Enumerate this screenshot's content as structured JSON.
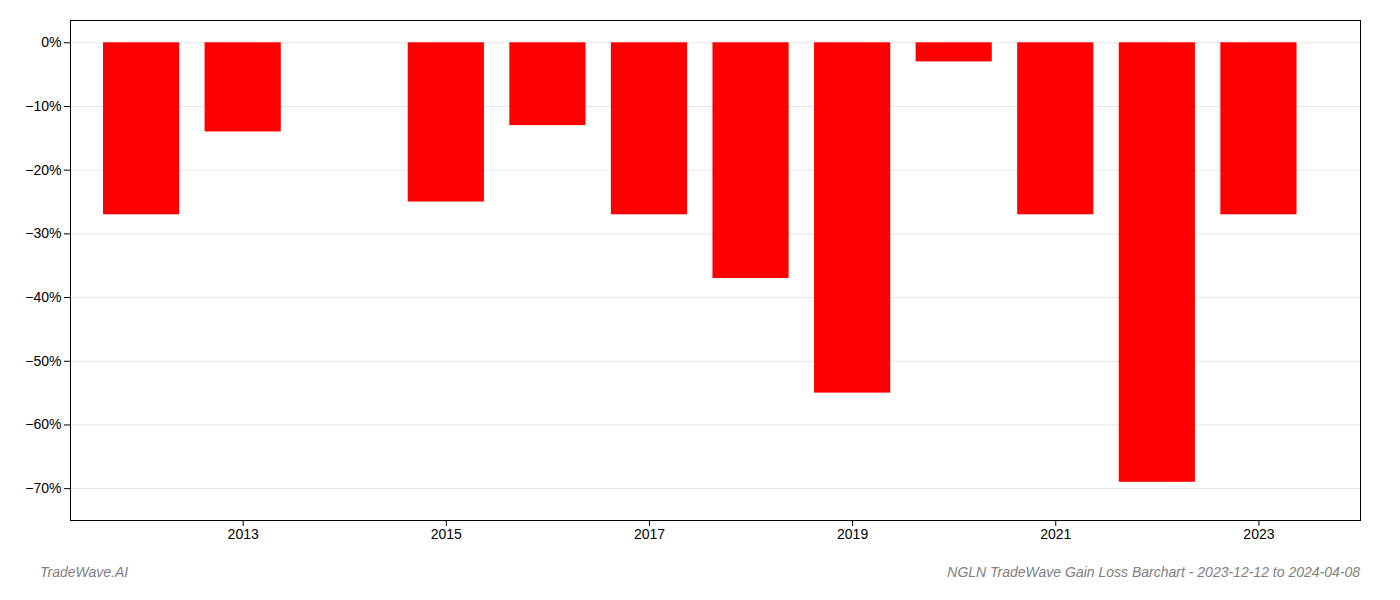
{
  "chart_data": {
    "type": "bar",
    "title": "NGLN TradeWave Gain Loss Barchart - 2023-12-12 to 2024-04-08",
    "annotations": [
      "TradeWave.AI"
    ],
    "x": [
      2012,
      2013,
      2015,
      2016,
      2017,
      2018,
      2019,
      2020,
      2021,
      2022,
      2023
    ],
    "values": [
      -27,
      -14,
      -25,
      -13,
      -27,
      -37,
      -55,
      -3,
      -27,
      -69,
      -27
    ],
    "color": "#ff0000",
    "xlim": [
      2011.3,
      2024.0
    ],
    "xticks": [
      2013,
      2015,
      2017,
      2019,
      2021,
      2023
    ],
    "ylim": [
      -75,
      3.5
    ],
    "yticks": [
      {
        "value": 0,
        "label": "0%"
      },
      {
        "value": -10,
        "label": "−10%"
      },
      {
        "value": -20,
        "label": "−20%"
      },
      {
        "value": -30,
        "label": "−30%"
      },
      {
        "value": -40,
        "label": "−40%"
      },
      {
        "value": -50,
        "label": "−50%"
      },
      {
        "value": -60,
        "label": "−60%"
      },
      {
        "value": -70,
        "label": "−70%"
      }
    ],
    "grid": true
  }
}
